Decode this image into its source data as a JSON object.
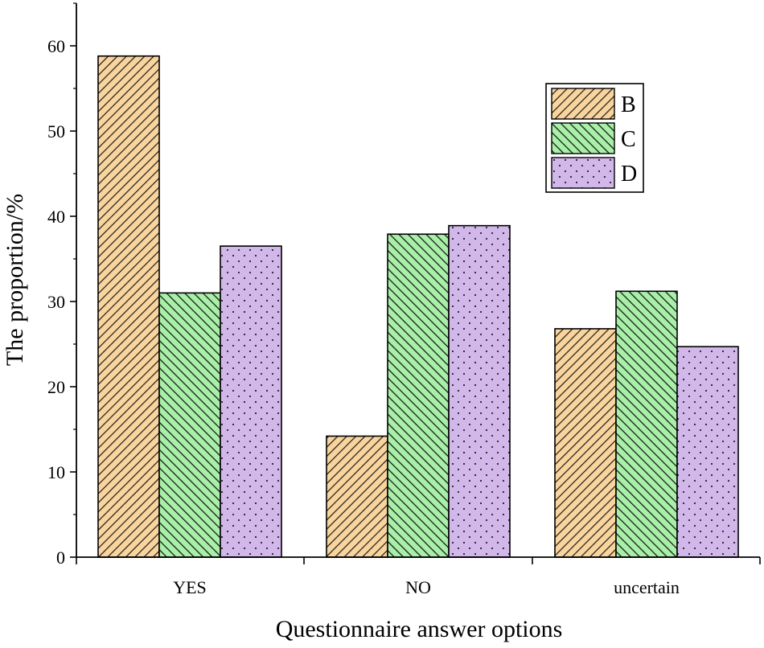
{
  "chart_data": {
    "type": "bar",
    "title": "",
    "xlabel": "Questionnaire answer options",
    "ylabel": "The proportion/%",
    "categories": [
      "YES",
      "NO",
      "uncertain"
    ],
    "series": [
      {
        "name": "B",
        "values": [
          58.8,
          14.2,
          26.8
        ],
        "color": "#f9d49c",
        "pattern": "diagonal-forward"
      },
      {
        "name": "C",
        "values": [
          31.0,
          37.9,
          31.2
        ],
        "color": "#a8f0a8",
        "pattern": "diagonal-backward"
      },
      {
        "name": "D",
        "values": [
          36.5,
          38.9,
          24.7
        ],
        "color": "#d2b8ea",
        "pattern": "dots"
      }
    ],
    "ylim": [
      0,
      65
    ],
    "yticks": [
      0,
      10,
      20,
      30,
      40,
      50,
      60
    ],
    "grid": false,
    "legend": "top-right"
  }
}
